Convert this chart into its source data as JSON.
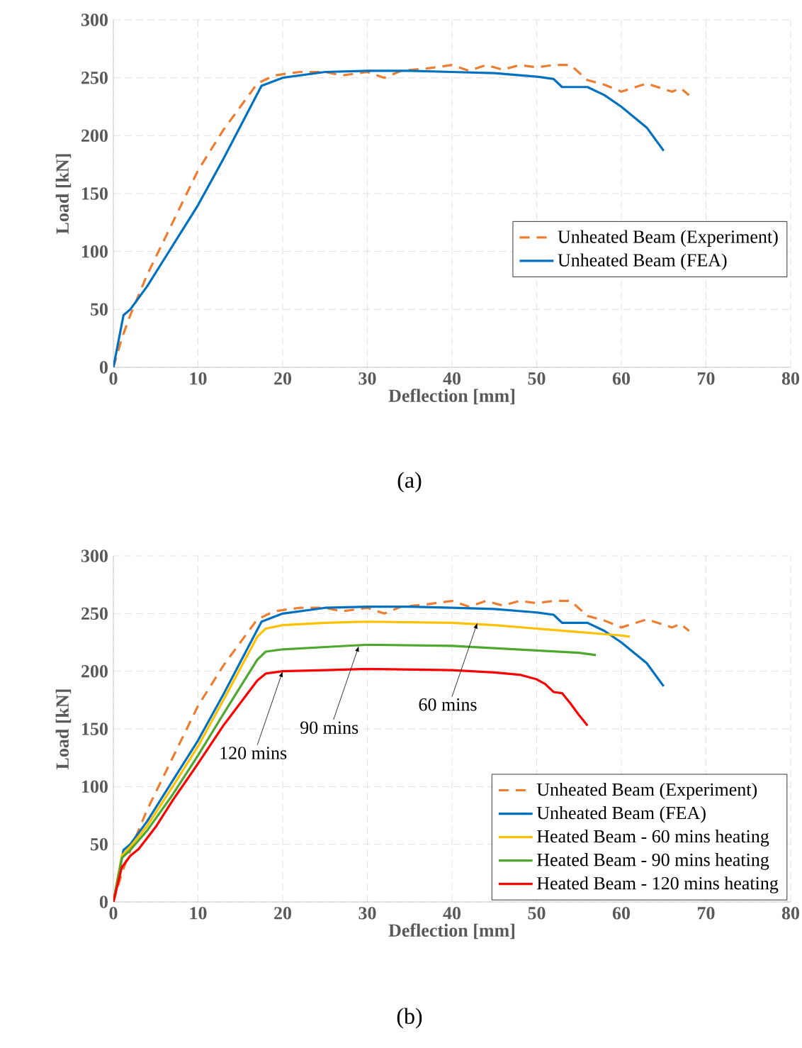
{
  "chart_data": [
    {
      "type": "line",
      "xlabel": "Deflection [mm]",
      "ylabel": "Load [kN]",
      "xlim": [
        0,
        80
      ],
      "ylim": [
        0,
        300
      ],
      "xticks": [
        0,
        10,
        20,
        30,
        40,
        50,
        60,
        70,
        80
      ],
      "yticks": [
        0,
        50,
        100,
        150,
        200,
        250,
        300
      ],
      "grid": true,
      "legend": "right",
      "annotations": [
        "(a)"
      ],
      "series": [
        {
          "name": "Unheated Beam (Experiment)",
          "color": "#ed7d31",
          "line_style": "dashed",
          "x": [
            0,
            1,
            2,
            4,
            7,
            10,
            13,
            17,
            19,
            22,
            25,
            27,
            30,
            32,
            34,
            37,
            40,
            42,
            44,
            46,
            48,
            50,
            52,
            54,
            56,
            58,
            60,
            63,
            66,
            67,
            68
          ],
          "values": [
            0,
            25,
            45,
            80,
            125,
            170,
            205,
            245,
            252,
            255,
            255,
            252,
            255,
            250,
            256,
            258,
            261,
            256,
            261,
            257,
            261,
            259,
            261,
            261,
            248,
            244,
            238,
            245,
            238,
            241,
            235
          ]
        },
        {
          "name": "Unheated Beam (FEA)",
          "color": "#0070c0",
          "line_style": "solid",
          "x": [
            0,
            1.2,
            2,
            4,
            7,
            10,
            13,
            17.5,
            20,
            25,
            30,
            35,
            40,
            45,
            50,
            52,
            53,
            56,
            58,
            60,
            63,
            65
          ],
          "values": [
            0,
            45,
            50,
            70,
            105,
            140,
            180,
            243,
            250,
            255,
            256,
            256,
            255,
            254,
            251,
            249,
            242,
            242,
            235,
            225,
            207,
            187
          ]
        }
      ]
    },
    {
      "type": "line",
      "xlabel": "Deflection [mm]",
      "ylabel": "Load [kN]",
      "xlim": [
        0,
        80
      ],
      "ylim": [
        0,
        300
      ],
      "xticks": [
        0,
        10,
        20,
        30,
        40,
        50,
        60,
        70,
        80
      ],
      "yticks": [
        0,
        50,
        100,
        150,
        200,
        250,
        300
      ],
      "grid": true,
      "legend": "bottom right",
      "annotations": [
        {
          "text": "120 mins",
          "x": 20,
          "y": 200
        },
        {
          "text": "90 mins",
          "x": 29,
          "y": 222
        },
        {
          "text": "60 mins",
          "x": 43,
          "y": 242
        },
        "(b)"
      ],
      "series": [
        {
          "name": "Unheated Beam (Experiment)",
          "color": "#ed7d31",
          "line_style": "dashed",
          "x": [
            0,
            1,
            2,
            4,
            7,
            10,
            13,
            17,
            19,
            22,
            25,
            27,
            30,
            32,
            34,
            37,
            40,
            42,
            44,
            46,
            48,
            50,
            52,
            54,
            56,
            58,
            60,
            63,
            66,
            67,
            68
          ],
          "values": [
            0,
            25,
            45,
            80,
            125,
            170,
            205,
            245,
            252,
            255,
            255,
            252,
            255,
            250,
            256,
            258,
            261,
            256,
            261,
            257,
            261,
            259,
            261,
            261,
            248,
            244,
            238,
            245,
            238,
            241,
            235
          ]
        },
        {
          "name": "Unheated Beam (FEA)",
          "color": "#0070c0",
          "line_style": "solid",
          "x": [
            0,
            1.2,
            2,
            4,
            7,
            10,
            13,
            17.5,
            20,
            25,
            30,
            35,
            40,
            45,
            50,
            52,
            53,
            56,
            58,
            60,
            63,
            65
          ],
          "values": [
            0,
            45,
            50,
            70,
            105,
            140,
            180,
            243,
            250,
            255,
            256,
            256,
            255,
            254,
            251,
            249,
            242,
            242,
            235,
            225,
            207,
            187
          ]
        },
        {
          "name": "Heated Beam - 60 mins heating",
          "color": "#ffc000",
          "line_style": "solid",
          "x": [
            0,
            1,
            2,
            4,
            7,
            10,
            13,
            17,
            18,
            20,
            25,
            30,
            40,
            45,
            50,
            55,
            60,
            61
          ],
          "values": [
            0,
            40,
            48,
            66,
            100,
            135,
            175,
            230,
            237,
            240,
            242,
            243,
            242,
            240,
            237,
            234,
            231,
            230
          ]
        },
        {
          "name": "Heated Beam - 90 mins heating",
          "color": "#4ea72e",
          "line_style": "solid",
          "x": [
            0,
            1,
            2,
            4,
            7,
            10,
            13,
            17,
            18,
            20,
            25,
            30,
            40,
            45,
            50,
            55,
            57
          ],
          "values": [
            0,
            38,
            45,
            62,
            93,
            127,
            163,
            210,
            217,
            219,
            221,
            223,
            222,
            220,
            218,
            216,
            214
          ]
        },
        {
          "name": "Heated Beam - 120 mins heating",
          "color": "#ff0000",
          "line_style": "solid",
          "x": [
            0,
            1,
            2,
            3,
            5,
            7,
            10,
            13,
            17,
            18,
            20,
            25,
            30,
            40,
            45,
            48,
            50,
            51,
            52,
            53,
            54,
            55,
            56
          ],
          "values": [
            0,
            30,
            40,
            46,
            65,
            88,
            120,
            153,
            192,
            198,
            200,
            201,
            202,
            201,
            199,
            197,
            193,
            189,
            182,
            181,
            172,
            162,
            153
          ]
        }
      ]
    }
  ]
}
